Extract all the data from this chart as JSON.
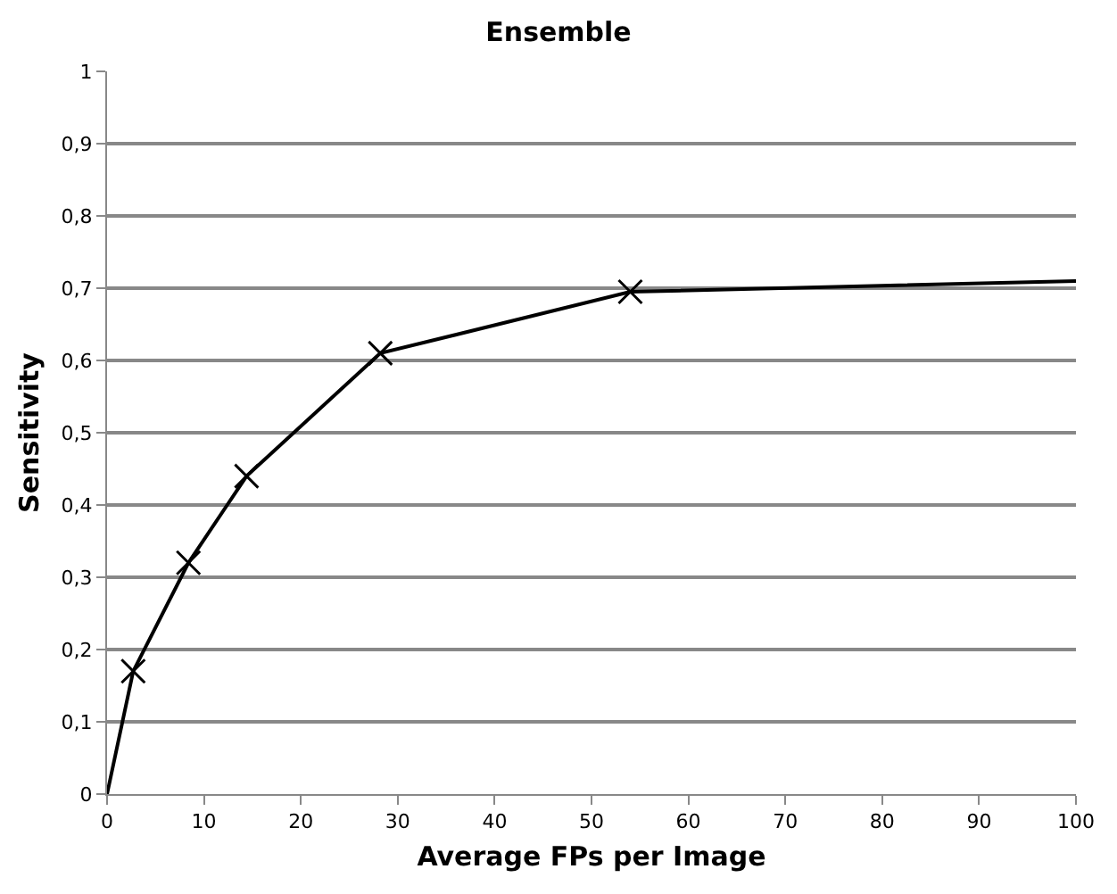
{
  "chart_data": {
    "type": "line",
    "title": "Ensemble",
    "xlabel": "Average FPs per Image",
    "ylabel": "Sensitivity",
    "series": [
      {
        "color": "#000000",
        "marker": "none",
        "line_style": "solid",
        "x": [
          0,
          2.7,
          8.4,
          14.4,
          28.2,
          54,
          100
        ],
        "values": [
          0,
          0.17,
          0.32,
          0.44,
          0.61,
          0.695,
          0.71
        ]
      },
      {
        "type": "scatter",
        "color": "#000000",
        "marker": "cross",
        "x": [
          2.7,
          8.4,
          14.4,
          28.2,
          54
        ],
        "values": [
          0.17,
          0.32,
          0.44,
          0.61,
          0.695
        ]
      }
    ],
    "xlim": [
      0,
      100
    ],
    "xticks": [
      0,
      10,
      20,
      30,
      40,
      50,
      60,
      70,
      80,
      90,
      100
    ],
    "ylim": [
      0,
      1
    ],
    "yticks": [
      0,
      {
        "value": 0.1,
        "label": "0,1"
      },
      {
        "value": 0.2,
        "label": "0,2"
      },
      {
        "value": 0.3,
        "label": "0,3"
      },
      {
        "value": 0.4,
        "label": "0,4"
      },
      {
        "value": 0.5,
        "label": "0,5"
      },
      {
        "value": 0.6,
        "label": "0,6"
      },
      {
        "value": 0.7,
        "label": "0,7"
      },
      {
        "value": 0.8,
        "label": "0,8"
      },
      {
        "value": 0.9,
        "label": "0,9"
      },
      1
    ],
    "grid": "y"
  }
}
